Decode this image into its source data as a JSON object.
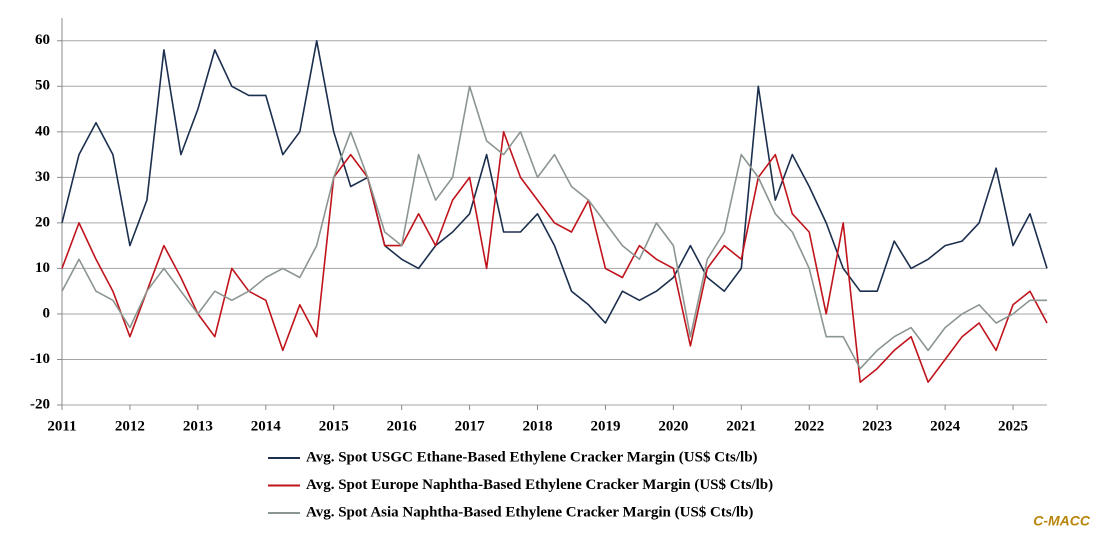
{
  "chart_data": {
    "type": "line",
    "x": [
      2011,
      2011.25,
      2011.5,
      2011.75,
      2012,
      2012.25,
      2012.5,
      2012.75,
      2013,
      2013.25,
      2013.5,
      2013.75,
      2014,
      2014.25,
      2014.5,
      2014.75,
      2015,
      2015.25,
      2015.5,
      2015.75,
      2016,
      2016.25,
      2016.5,
      2016.75,
      2017,
      2017.25,
      2017.5,
      2017.75,
      2018,
      2018.25,
      2018.5,
      2018.75,
      2019,
      2019.25,
      2019.5,
      2019.75,
      2020,
      2020.25,
      2020.5,
      2020.75,
      2021,
      2021.25,
      2021.5,
      2021.75,
      2022,
      2022.25,
      2022.5,
      2022.75,
      2023,
      2023.25,
      2023.5,
      2023.75,
      2024,
      2024.25,
      2024.5,
      2024.75,
      2025,
      2025.25,
      2025.5
    ],
    "series": [
      {
        "name": "Avg. Spot USGC Ethane-Based Ethylene Cracker Margin (US$ Cts/lb)",
        "color": "#1b2f4e",
        "values": [
          20,
          35,
          42,
          35,
          15,
          25,
          58,
          35,
          45,
          58,
          50,
          48,
          48,
          35,
          40,
          60,
          40,
          28,
          30,
          15,
          12,
          10,
          15,
          18,
          22,
          35,
          18,
          18,
          22,
          15,
          5,
          2,
          -2,
          5,
          3,
          5,
          8,
          15,
          8,
          5,
          10,
          50,
          25,
          35,
          28,
          20,
          10,
          5,
          5,
          16,
          10,
          12,
          15,
          16,
          20,
          32,
          15,
          22,
          10
        ]
      },
      {
        "name": "Avg. Spot Europe Naphtha-Based Ethylene Cracker Margin (US$ Cts/lb)",
        "color": "#c0141c",
        "values": [
          10,
          20,
          12,
          5,
          -5,
          5,
          15,
          8,
          0,
          -5,
          10,
          5,
          3,
          -8,
          2,
          -5,
          30,
          35,
          30,
          15,
          15,
          22,
          15,
          25,
          30,
          10,
          40,
          30,
          25,
          20,
          18,
          25,
          10,
          8,
          15,
          12,
          10,
          -7,
          10,
          15,
          12,
          30,
          35,
          22,
          18,
          0,
          20,
          -15,
          -12,
          -8,
          -5,
          -15,
          -10,
          -5,
          -2,
          -8,
          2,
          5,
          -2
        ]
      },
      {
        "name": "Avg. Spot Asia Naphtha-Based Ethylene Cracker Margin (US$ Cts/lb)",
        "color": "#8c9690",
        "values": [
          5,
          12,
          5,
          3,
          -3,
          5,
          10,
          5,
          0,
          5,
          3,
          5,
          8,
          10,
          8,
          15,
          30,
          40,
          30,
          18,
          15,
          35,
          25,
          30,
          50,
          38,
          35,
          40,
          30,
          35,
          28,
          25,
          20,
          15,
          12,
          20,
          15,
          -5,
          12,
          18,
          35,
          30,
          22,
          18,
          10,
          -5,
          -5,
          -12,
          -8,
          -5,
          -3,
          -8,
          -3,
          0,
          2,
          -2,
          0,
          3,
          3
        ]
      }
    ],
    "xlim": [
      2011,
      2025.5
    ],
    "xticks": [
      2011,
      2012,
      2013,
      2014,
      2015,
      2016,
      2017,
      2018,
      2019,
      2020,
      2021,
      2022,
      2023,
      2024,
      2025
    ],
    "ylim": [
      -20,
      65
    ],
    "yticks": [
      -20,
      -10,
      0,
      10,
      20,
      30,
      40,
      50,
      60
    ],
    "grid": true,
    "legend": "bottom",
    "source": "C-MACC"
  }
}
